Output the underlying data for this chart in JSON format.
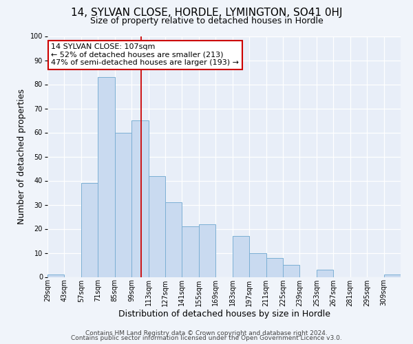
{
  "title": "14, SYLVAN CLOSE, HORDLE, LYMINGTON, SO41 0HJ",
  "subtitle": "Size of property relative to detached houses in Hordle",
  "xlabel": "Distribution of detached houses by size in Hordle",
  "ylabel": "Number of detached properties",
  "bar_labels": [
    "29sqm",
    "43sqm",
    "57sqm",
    "71sqm",
    "85sqm",
    "99sqm",
    "113sqm",
    "127sqm",
    "141sqm",
    "155sqm",
    "169sqm",
    "183sqm",
    "197sqm",
    "211sqm",
    "225sqm",
    "239sqm",
    "253sqm",
    "267sqm",
    "281sqm",
    "295sqm",
    "309sqm"
  ],
  "bar_values": [
    1,
    0,
    39,
    83,
    60,
    65,
    42,
    31,
    21,
    22,
    0,
    17,
    10,
    8,
    5,
    0,
    3,
    0,
    0,
    0,
    1
  ],
  "bar_color": "#c9daf0",
  "bar_edgecolor": "#7bafd4",
  "vline_x": 6,
  "bin_width": 1,
  "ylim": [
    0,
    100
  ],
  "annotation_text": "14 SYLVAN CLOSE: 107sqm\n← 52% of detached houses are smaller (213)\n47% of semi-detached houses are larger (193) →",
  "annotation_box_edgecolor": "#cc0000",
  "footnote1": "Contains HM Land Registry data © Crown copyright and database right 2024.",
  "footnote2": "Contains public sector information licensed under the Open Government Licence v3.0.",
  "bg_color": "#f0f4fa",
  "plot_bg_color": "#e8eef8",
  "grid_color": "#ffffff",
  "title_fontsize": 11,
  "subtitle_fontsize": 9,
  "axis_label_fontsize": 9,
  "tick_fontsize": 7,
  "annotation_fontsize": 8,
  "footnote_fontsize": 6.5
}
